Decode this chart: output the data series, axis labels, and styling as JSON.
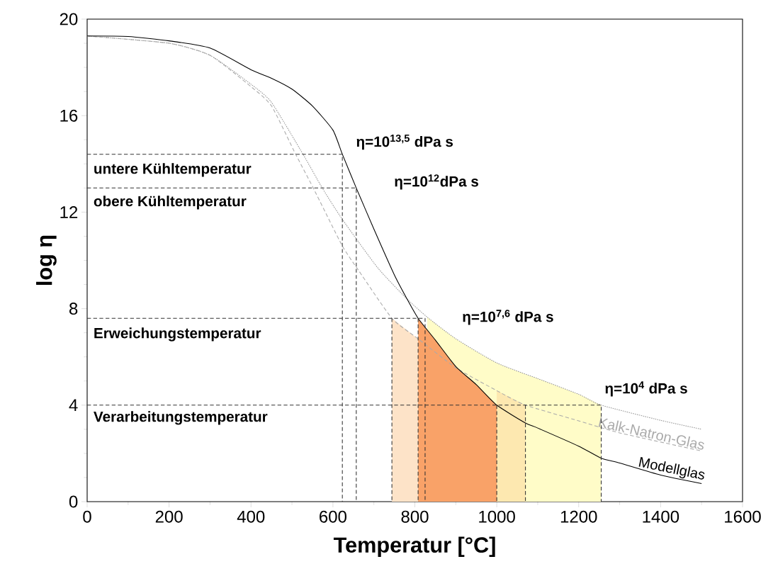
{
  "chart_data": {
    "type": "line",
    "xlabel": "Temperatur [°C]",
    "ylabel": "log η",
    "xlim": [
      0,
      1600
    ],
    "ylim": [
      0,
      20
    ],
    "xticks": [
      0,
      200,
      400,
      600,
      800,
      1000,
      1200,
      1400,
      1600
    ],
    "yticks": [
      0,
      4,
      8,
      12,
      16,
      20
    ],
    "series": [
      {
        "type": "area",
        "color": "#fffcc8",
        "x": [
          830,
          900,
          1000,
          1100,
          1200,
          1255
        ],
        "values": [
          7.65,
          6.75,
          5.75,
          5.1,
          4.45,
          4.0
        ]
      },
      {
        "type": "area",
        "color": "#fde3c8",
        "x": [
          744,
          800,
          808
        ],
        "values": [
          7.6,
          6.85,
          6.75
        ]
      },
      {
        "type": "area",
        "color": "#fde8b0",
        "x": [
          1000,
          1070
        ],
        "values": [
          4.6,
          4.0
        ]
      },
      {
        "type": "area",
        "color": "#f9a268",
        "x": [
          808,
          850,
          900,
          950,
          1000
        ],
        "values": [
          7.6,
          6.7,
          5.6,
          4.85,
          4.0
        ]
      },
      {
        "color": "#999999",
        "line_style": "dotted",
        "x": [
          0,
          200,
          300,
          400,
          450,
          527,
          574,
          623,
          709,
          778,
          830,
          900,
          1000,
          1100,
          1200,
          1255,
          1400,
          1500
        ],
        "values": [
          19.3,
          19.0,
          18.5,
          17.3,
          16.55,
          14.4,
          13.0,
          11.7,
          9.7,
          8.45,
          7.65,
          6.75,
          5.75,
          5.1,
          4.45,
          4.0,
          3.37,
          3.0
        ]
      },
      {
        "name": "Kalk-Natron-Glas",
        "color": "#aaaaaa",
        "line_style": "dashed",
        "x": [
          0,
          200,
          300,
          400,
          450,
          509,
          552,
          623,
          664,
          744,
          808,
          900,
          1000,
          1070,
          1200,
          1300,
          1500
        ],
        "values": [
          19.3,
          19.0,
          18.5,
          17.2,
          16.4,
          14.4,
          13.0,
          10.6,
          9.55,
          7.6,
          6.75,
          5.55,
          4.6,
          4.0,
          3.35,
          2.85,
          2.1
        ]
      },
      {
        "name": "Modellglas",
        "color": "#000000",
        "line_style": "solid",
        "x": [
          0,
          100,
          200,
          300,
          400,
          450,
          500,
          550,
          600,
          623,
          657,
          700,
          750,
          780,
          808,
          850,
          900,
          950,
          1000,
          1070,
          1100,
          1200,
          1255,
          1300,
          1400,
          1500
        ],
        "values": [
          19.3,
          19.28,
          19.1,
          18.8,
          17.9,
          17.55,
          17.1,
          16.4,
          15.4,
          14.4,
          13.0,
          11.3,
          9.4,
          8.43,
          7.6,
          6.7,
          5.6,
          4.85,
          4.0,
          3.26,
          3.05,
          2.3,
          1.8,
          1.6,
          1.1,
          0.75
        ]
      },
      {
        "type": "line",
        "color": "#333333",
        "line_style": "dashed",
        "x": [
          0,
          623,
          623
        ],
        "values": [
          14.4,
          14.4,
          0
        ]
      },
      {
        "type": "line",
        "color": "#333333",
        "line_style": "dashed",
        "x": [
          0,
          657,
          657
        ],
        "values": [
          13.0,
          13.0,
          0
        ]
      },
      {
        "type": "line",
        "color": "#333333",
        "line_style": "dashed",
        "x": [
          0,
          825,
          825
        ],
        "values": [
          7.6,
          7.6,
          0
        ]
      },
      {
        "type": "line",
        "color": "#333333",
        "line_style": "dashed",
        "x": [
          0,
          1255,
          1255
        ],
        "values": [
          4.0,
          4.0,
          0
        ]
      },
      {
        "type": "line",
        "color": "#333333",
        "line_style": "dashed",
        "x": [
          744,
          744
        ],
        "values": [
          7.6,
          0
        ]
      },
      {
        "type": "line",
        "color": "#333333",
        "line_style": "dashed",
        "x": [
          808,
          808
        ],
        "values": [
          7.6,
          0
        ]
      },
      {
        "type": "line",
        "color": "#333333",
        "line_style": "dashed",
        "x": [
          1000,
          1000
        ],
        "values": [
          4.0,
          0
        ]
      },
      {
        "type": "line",
        "color": "#333333",
        "line_style": "dashed",
        "x": [
          1070,
          1070
        ],
        "values": [
          4.0,
          0
        ]
      }
    ],
    "annotations": [
      "untere Kühltemperatur",
      "obere Kühltemperatur",
      "Erweichungstemperatur",
      "Verarbeitungstemperatur",
      "η=10$^{13,5}$ dPa s",
      "η=10$^{12}$dPa s",
      "η=10$^{7,6}$ dPa s",
      "η=10$^{4}$ dPa s"
    ]
  }
}
